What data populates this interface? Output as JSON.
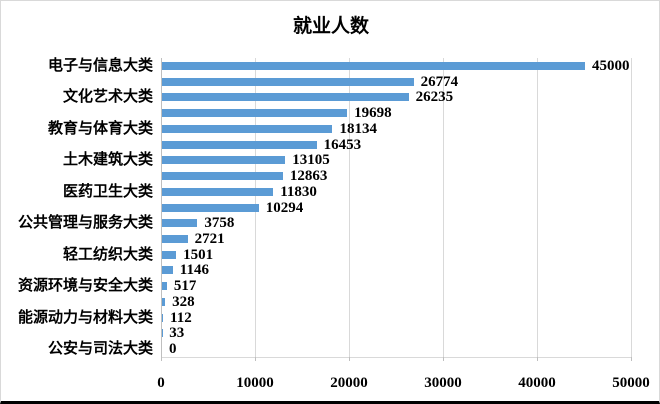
{
  "chart_data": {
    "type": "bar",
    "orientation": "horizontal",
    "title": "就业人数",
    "xlabel": "",
    "ylabel": "",
    "xlim": [
      0,
      50000
    ],
    "x_tick_labels": [
      "0",
      "10000",
      "20000",
      "30000",
      "40000",
      "50000"
    ],
    "grid": true,
    "legend_position": "none",
    "bar_color": "#5b9bd5",
    "gridline_color": "#d9d9d9",
    "bars": [
      {
        "label": "电子与信息大类",
        "value": 45000
      },
      {
        "label": "",
        "value": 26774
      },
      {
        "label": "文化艺术大类",
        "value": 26235
      },
      {
        "label": "",
        "value": 19698
      },
      {
        "label": "教育与体育大类",
        "value": 18134
      },
      {
        "label": "",
        "value": 16453
      },
      {
        "label": "土木建筑大类",
        "value": 13105
      },
      {
        "label": "",
        "value": 12863
      },
      {
        "label": "医药卫生大类",
        "value": 11830
      },
      {
        "label": "",
        "value": 10294
      },
      {
        "label": "公共管理与服务大类",
        "value": 3758
      },
      {
        "label": "",
        "value": 2721
      },
      {
        "label": "轻工纺织大类",
        "value": 1501
      },
      {
        "label": "",
        "value": 1146
      },
      {
        "label": "资源环境与安全大类",
        "value": 517
      },
      {
        "label": "",
        "value": 328
      },
      {
        "label": "能源动力与材料大类",
        "value": 112
      },
      {
        "label": "",
        "value": 33
      },
      {
        "label": "公安与司法大类",
        "value": 0
      }
    ]
  }
}
